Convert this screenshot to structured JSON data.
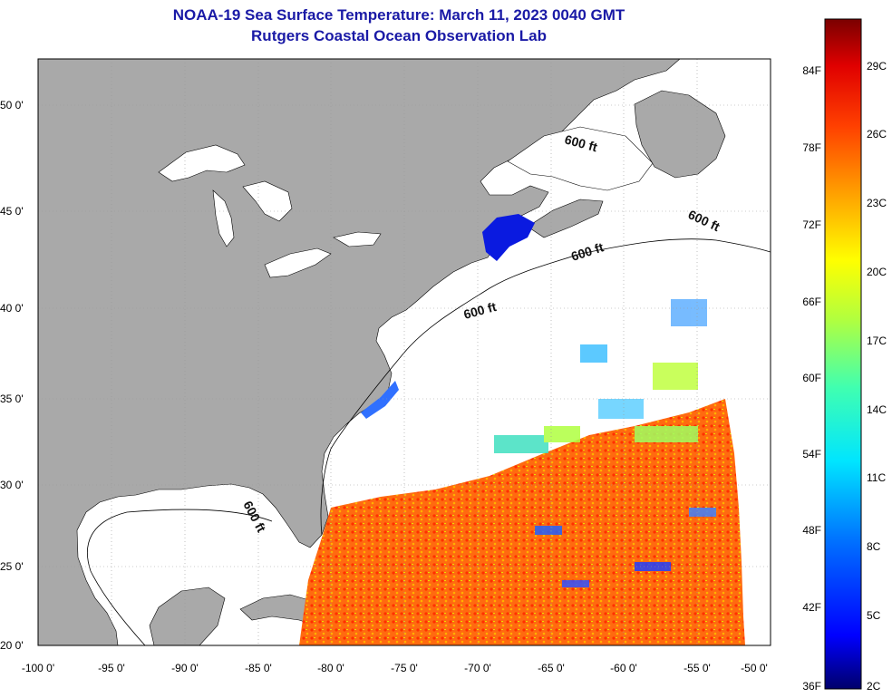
{
  "title": "NOAA-19 Sea Surface Temperature:  March 11, 2023 0040 GMT",
  "subtitle": "Rutgers Coastal Ocean Observation Lab",
  "colors": {
    "land": "#a9a9a9",
    "ocean": "#ffffff",
    "title": "#1a1aa6",
    "grid": "#9a9a9a"
  },
  "lat_labels": [
    "50 0'",
    "45 0'",
    "40 0'",
    "35 0'",
    "30 0'",
    "25 0'",
    "20 0'"
  ],
  "lon_labels": [
    "-100 0'",
    "-95 0'",
    "-90 0'",
    "-85 0'",
    "-80 0'",
    "-75 0'",
    "-70 0'",
    "-65 0'",
    "-60 0'",
    "-55 0'",
    "-50 0'"
  ],
  "depth_labels": [
    "600 ft",
    "600 ft",
    "600 ft",
    "600 ft",
    "600 ft"
  ],
  "colorbar": {
    "fahrenheit": [
      "84F",
      "78F",
      "72F",
      "66F",
      "60F",
      "54F",
      "48F",
      "42F",
      "36F"
    ],
    "celsius": [
      "29C",
      "26C",
      "23C",
      "20C",
      "17C",
      "14C",
      "11C",
      "8C",
      "5C",
      "2C"
    ]
  }
}
